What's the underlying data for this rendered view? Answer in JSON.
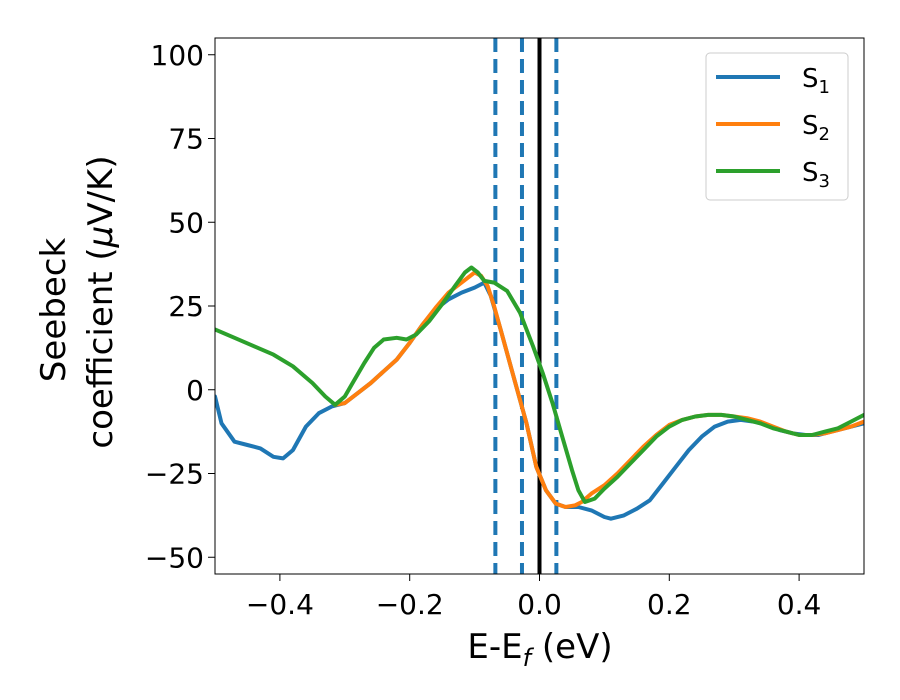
{
  "chart_data": {
    "type": "line",
    "title": "",
    "xlabel": {
      "main": "E-E",
      "sub": "f",
      "suffix": " (eV)"
    },
    "ylabel": {
      "line1": "Seebeck",
      "line2_prefix": "coefficient  (",
      "mu": "μ",
      "line2_suffix": "V/K)"
    },
    "xlim": [
      -0.5,
      0.5
    ],
    "ylim": [
      -55,
      105
    ],
    "xticks": [
      -0.4,
      -0.2,
      0.0,
      0.2,
      0.4
    ],
    "xtick_labels": [
      "−0.4",
      "−0.2",
      "0.0",
      "0.2",
      "0.4"
    ],
    "yticks": [
      -50,
      -25,
      0,
      25,
      50,
      75,
      100
    ],
    "ytick_labels": [
      "−50",
      "−25",
      "0",
      "25",
      "50",
      "75",
      "100"
    ],
    "legend_position": "top-right",
    "colors": {
      "s1": "#1f77b4",
      "s2": "#ff7f0e",
      "s3": "#2ca02c",
      "fermi": "#000000",
      "dashed": "#1f77b4"
    },
    "vlines": [
      {
        "x": -0.068,
        "style": "dashed",
        "color": "#1f77b4"
      },
      {
        "x": -0.027,
        "style": "dashed",
        "color": "#1f77b4"
      },
      {
        "x": 0.0,
        "style": "solid",
        "color": "#000000"
      },
      {
        "x": 0.026,
        "style": "dashed",
        "color": "#1f77b4"
      }
    ],
    "series": [
      {
        "name": "S",
        "sub": "1",
        "color": "#1f77b4",
        "points": [
          [
            -0.5,
            -2
          ],
          [
            -0.49,
            -10
          ],
          [
            -0.47,
            -15.5
          ],
          [
            -0.45,
            -16.5
          ],
          [
            -0.43,
            -17.5
          ],
          [
            -0.41,
            -20
          ],
          [
            -0.395,
            -20.5
          ],
          [
            -0.38,
            -18
          ],
          [
            -0.36,
            -11
          ],
          [
            -0.34,
            -7
          ],
          [
            -0.32,
            -5
          ],
          [
            -0.3,
            -4
          ],
          [
            -0.28,
            -1
          ],
          [
            -0.26,
            2
          ],
          [
            -0.24,
            5.5
          ],
          [
            -0.22,
            9
          ],
          [
            -0.2,
            14
          ],
          [
            -0.18,
            19.5
          ],
          [
            -0.16,
            24
          ],
          [
            -0.14,
            27
          ],
          [
            -0.12,
            29
          ],
          [
            -0.1,
            30.5
          ],
          [
            -0.085,
            32
          ],
          [
            -0.075,
            28
          ],
          [
            -0.06,
            18
          ],
          [
            -0.04,
            4
          ],
          [
            -0.02,
            -10
          ],
          [
            -0.005,
            -23
          ],
          [
            0.01,
            -30
          ],
          [
            0.025,
            -34
          ],
          [
            0.04,
            -35
          ],
          [
            0.06,
            -35
          ],
          [
            0.08,
            -36
          ],
          [
            0.1,
            -38
          ],
          [
            0.11,
            -38.5
          ],
          [
            0.13,
            -37.5
          ],
          [
            0.15,
            -35.5
          ],
          [
            0.17,
            -33
          ],
          [
            0.19,
            -28
          ],
          [
            0.21,
            -23
          ],
          [
            0.23,
            -18
          ],
          [
            0.25,
            -14
          ],
          [
            0.27,
            -11
          ],
          [
            0.29,
            -9.5
          ],
          [
            0.31,
            -9
          ],
          [
            0.33,
            -9.5
          ],
          [
            0.35,
            -10.5
          ],
          [
            0.37,
            -12
          ],
          [
            0.39,
            -13
          ],
          [
            0.41,
            -13.5
          ],
          [
            0.43,
            -13.5
          ],
          [
            0.45,
            -12.5
          ],
          [
            0.47,
            -11.5
          ],
          [
            0.5,
            -10
          ]
        ]
      },
      {
        "name": "S",
        "sub": "2",
        "color": "#ff7f0e",
        "points": [
          [
            -0.315,
            -4.5
          ],
          [
            -0.3,
            -4
          ],
          [
            -0.28,
            -1
          ],
          [
            -0.26,
            2
          ],
          [
            -0.24,
            5.5
          ],
          [
            -0.22,
            9
          ],
          [
            -0.2,
            14
          ],
          [
            -0.18,
            19.5
          ],
          [
            -0.16,
            24.5
          ],
          [
            -0.14,
            29
          ],
          [
            -0.12,
            32
          ],
          [
            -0.1,
            35
          ],
          [
            -0.09,
            34
          ],
          [
            -0.08,
            31
          ],
          [
            -0.07,
            25
          ],
          [
            -0.06,
            18
          ],
          [
            -0.04,
            4
          ],
          [
            -0.02,
            -10
          ],
          [
            -0.005,
            -23
          ],
          [
            0.01,
            -30
          ],
          [
            0.025,
            -34
          ],
          [
            0.04,
            -35
          ],
          [
            0.055,
            -34.5
          ],
          [
            0.065,
            -33.5
          ],
          [
            0.08,
            -31
          ],
          [
            0.1,
            -28.5
          ],
          [
            0.12,
            -25
          ],
          [
            0.14,
            -21
          ],
          [
            0.16,
            -17
          ],
          [
            0.18,
            -13.5
          ],
          [
            0.2,
            -10.5
          ],
          [
            0.22,
            -9
          ],
          [
            0.24,
            -8
          ],
          [
            0.26,
            -7.5
          ],
          [
            0.28,
            -7.5
          ],
          [
            0.3,
            -8
          ],
          [
            0.32,
            -8.5
          ],
          [
            0.34,
            -9.5
          ],
          [
            0.36,
            -11
          ],
          [
            0.38,
            -12.5
          ],
          [
            0.4,
            -13.5
          ],
          [
            0.42,
            -13.5
          ],
          [
            0.44,
            -13
          ],
          [
            0.46,
            -12
          ],
          [
            0.48,
            -11
          ],
          [
            0.5,
            -9.5
          ]
        ]
      },
      {
        "name": "S",
        "sub": "3",
        "color": "#2ca02c",
        "points": [
          [
            -0.5,
            18
          ],
          [
            -0.47,
            15.5
          ],
          [
            -0.44,
            13
          ],
          [
            -0.41,
            10.5
          ],
          [
            -0.38,
            7
          ],
          [
            -0.35,
            2
          ],
          [
            -0.33,
            -2
          ],
          [
            -0.315,
            -4.5
          ],
          [
            -0.3,
            -2
          ],
          [
            -0.285,
            3
          ],
          [
            -0.27,
            8
          ],
          [
            -0.255,
            12.5
          ],
          [
            -0.24,
            15
          ],
          [
            -0.22,
            15.5
          ],
          [
            -0.205,
            15
          ],
          [
            -0.19,
            16.5
          ],
          [
            -0.17,
            20.5
          ],
          [
            -0.15,
            25.5
          ],
          [
            -0.13,
            31
          ],
          [
            -0.115,
            35
          ],
          [
            -0.105,
            36.5
          ],
          [
            -0.095,
            35
          ],
          [
            -0.085,
            32.5
          ],
          [
            -0.07,
            32
          ],
          [
            -0.05,
            29.5
          ],
          [
            -0.03,
            23
          ],
          [
            -0.01,
            13
          ],
          [
            0.005,
            5
          ],
          [
            0.02,
            -4
          ],
          [
            0.035,
            -14
          ],
          [
            0.05,
            -24
          ],
          [
            0.06,
            -30
          ],
          [
            0.07,
            -33.5
          ],
          [
            0.085,
            -32.5
          ],
          [
            0.1,
            -29.5
          ],
          [
            0.12,
            -26
          ],
          [
            0.14,
            -22
          ],
          [
            0.16,
            -18
          ],
          [
            0.18,
            -14
          ],
          [
            0.2,
            -11
          ],
          [
            0.22,
            -9
          ],
          [
            0.24,
            -8
          ],
          [
            0.26,
            -7.5
          ],
          [
            0.28,
            -7.5
          ],
          [
            0.3,
            -8
          ],
          [
            0.32,
            -9
          ],
          [
            0.34,
            -10
          ],
          [
            0.36,
            -11.5
          ],
          [
            0.38,
            -12.5
          ],
          [
            0.4,
            -13.5
          ],
          [
            0.42,
            -13.5
          ],
          [
            0.44,
            -12.5
          ],
          [
            0.46,
            -11.5
          ],
          [
            0.48,
            -9.5
          ],
          [
            0.5,
            -7.5
          ]
        ]
      }
    ]
  }
}
